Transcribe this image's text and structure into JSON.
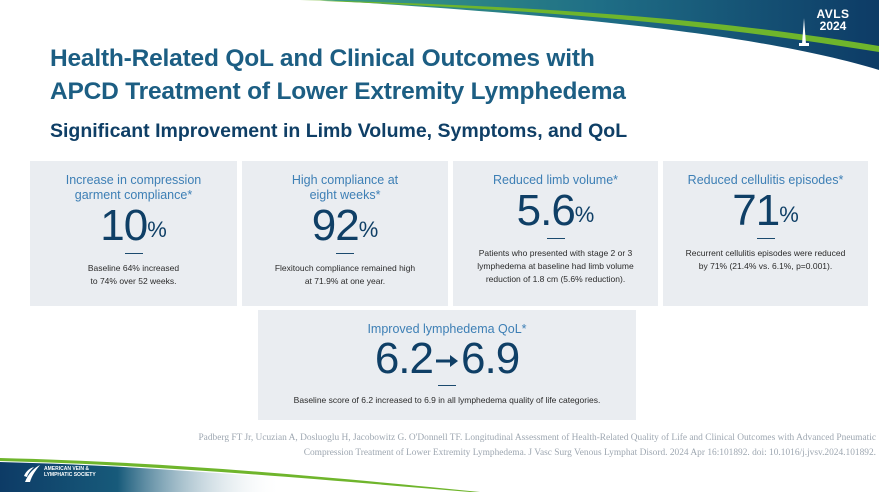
{
  "logo": {
    "line1": "AVLS",
    "line2": "2024"
  },
  "title_line1": "Health-Related QoL and Clinical Outcomes with",
  "title_line2": "APCD Treatment of Lower Extremity Lymphedema",
  "subtitle": "Significant Improvement in Limb Volume, Symptoms, and QoL",
  "cards": [
    {
      "label_line1": "Increase in compression",
      "label_line2": "garment compliance*",
      "value": "10",
      "unit": "%",
      "desc_line1": "Baseline 64% increased",
      "desc_line2": "to 74% over 52 weeks.",
      "desc_line3": ""
    },
    {
      "label_line1": "High compliance at",
      "label_line2": "eight weeks*",
      "value": "92",
      "unit": "%",
      "desc_line1": "Flexitouch compliance remained high",
      "desc_line2": "at 71.9% at one year.",
      "desc_line3": ""
    },
    {
      "label_line1": "Reduced limb volume*",
      "label_line2": "",
      "value": "5.6",
      "unit": "%",
      "desc_line1": "Patients who presented with stage 2 or 3",
      "desc_line2": "lymphedema at baseline had limb volume",
      "desc_line3": "reduction of 1.8 cm (5.6% reduction)."
    },
    {
      "label_line1": "Reduced cellulitis episodes*",
      "label_line2": "",
      "value": "71",
      "unit": "%",
      "desc_line1": "Recurrent cellulitis episodes were reduced",
      "desc_line2": "by 71% (21.4% vs. 6.1%, p=0.001).",
      "desc_line3": ""
    },
    {
      "label_line1": "Improved lymphedema QoL*",
      "label_line2": "",
      "value_from": "6.2",
      "value_to": "6.9",
      "desc_line1": "Baseline score of 6.2 increased to 6.9 in all lymphedema quality of life categories."
    }
  ],
  "citation_line1": "Padberg FT Jr, Ucuzian A, Dosluoglu H, Jacobowitz G. O'Donnell TF. Longitudinal Assessment of Health-Related Quality of Life and Clinical Outcomes with  Advanced Pneumatic",
  "citation_line2": "Compression Treatment of Lower Extremity Lymphedema. J Vasc Surg Venous Lymphat Disord. 2024 Apr 16:101892. doi: 10.1016/j.jvsv.2024.101892.",
  "society_logo": {
    "line1": "AMERICAN VEIN &",
    "line2": "LYMPHATIC SOCIETY"
  },
  "colors": {
    "navy": "#0f3f66",
    "title_blue": "#1c5e83",
    "label_blue": "#3d7fb5",
    "card_bg": "#eaedf1",
    "green": "#6fb52c"
  }
}
